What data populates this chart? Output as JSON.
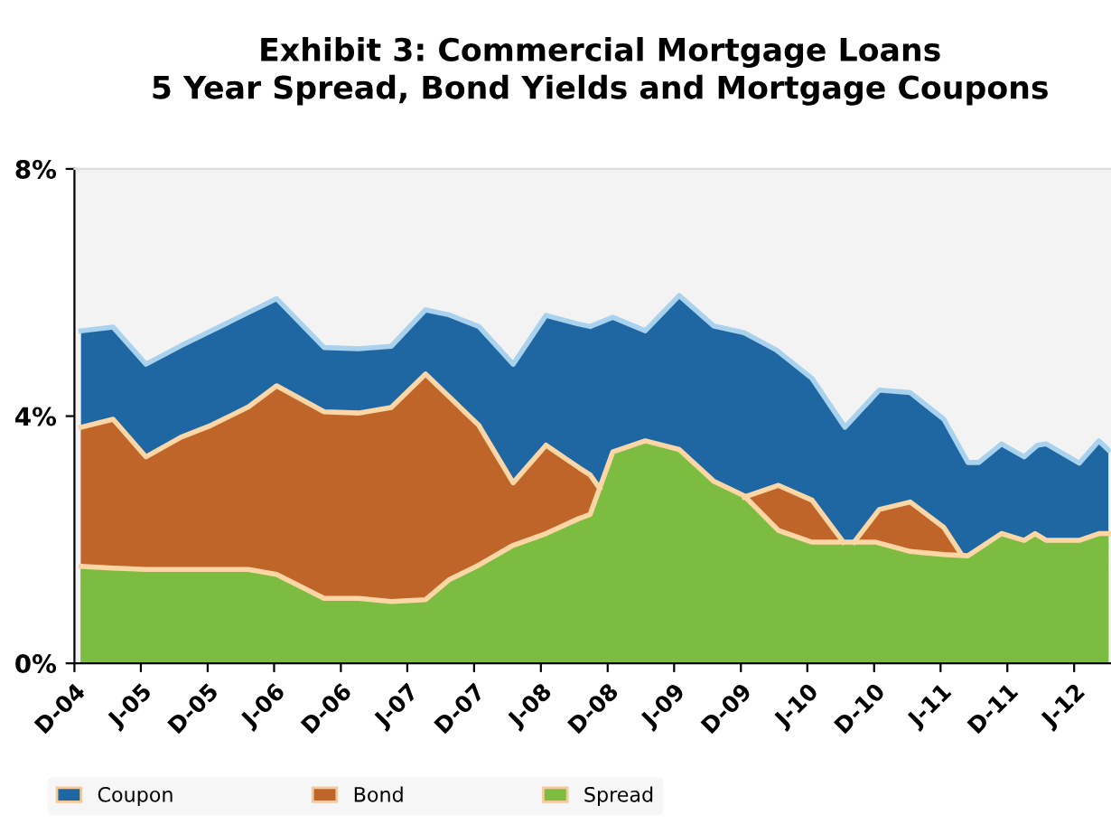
{
  "chart_data": {
    "type": "area",
    "title": "Exhibit 3: Commercial Mortgage Loans\n5 Year Spread, Bond Yields and Mortgage Coupons",
    "xlim": [
      "2004-12-01",
      "2012-09-10"
    ],
    "xticks": [
      {
        "value": "2004-12",
        "label": "D-04"
      },
      {
        "value": "2005-06",
        "label": "J-05"
      },
      {
        "value": "2005-12",
        "label": "D-05"
      },
      {
        "value": "2006-06",
        "label": "J-06"
      },
      {
        "value": "2006-12",
        "label": "D-06"
      },
      {
        "value": "2007-06",
        "label": "J-07"
      },
      {
        "value": "2007-12",
        "label": "D-07"
      },
      {
        "value": "2008-06",
        "label": "J-08"
      },
      {
        "value": "2008-12",
        "label": "D-08"
      },
      {
        "value": "2009-06",
        "label": "J-09"
      },
      {
        "value": "2009-12",
        "label": "D-09"
      },
      {
        "value": "2010-06",
        "label": "J-10"
      },
      {
        "value": "2010-12",
        "label": "D-10"
      },
      {
        "value": "2011-06",
        "label": "J-11"
      },
      {
        "value": "2011-12",
        "label": "D-11"
      },
      {
        "value": "2012-06",
        "label": "J-12"
      }
    ],
    "ylim": [
      0,
      8
    ],
    "yticks": [
      {
        "value": 0,
        "label": "0%"
      },
      {
        "value": 4,
        "label": "4%"
      },
      {
        "value": 8,
        "label": "8%"
      }
    ],
    "grid": false,
    "legend": "bottom",
    "series": [
      {
        "name": "Coupon",
        "color": "#1f67a3",
        "x": [
          "2004-12-19",
          "2005-03-17",
          "2005-06-15",
          "2005-09-19",
          "2006-06-08",
          "2006-10-16",
          "2007-01-18",
          "2007-04-18",
          "2007-07-21",
          "2007-09-23",
          "2007-12-14",
          "2008-03-17",
          "2008-06-15",
          "2008-09-12",
          "2008-10-14",
          "2008-12-15",
          "2009-03-14",
          "2009-06-15",
          "2009-09-17",
          "2009-12-10",
          "2010-03-08",
          "2010-06-14",
          "2010-09-12",
          "2010-12-15",
          "2011-03-10",
          "2011-06-10",
          "2011-08-15",
          "2011-09-14",
          "2011-11-15",
          "2012-01-16",
          "2012-02-22",
          "2012-03-17",
          "2012-06-15",
          "2012-08-08",
          "2012-09-03"
        ],
        "values": [
          5.38,
          5.44,
          4.84,
          5.14,
          5.9,
          5.11,
          5.09,
          5.13,
          5.72,
          5.64,
          5.45,
          4.84,
          5.63,
          5.49,
          5.45,
          5.6,
          5.38,
          5.95,
          5.46,
          5.35,
          5.07,
          4.61,
          3.82,
          4.42,
          4.38,
          3.95,
          3.25,
          3.25,
          3.55,
          3.34,
          3.53,
          3.55,
          3.24,
          3.6,
          3.45
        ]
      },
      {
        "name": "Bond",
        "color": "#c0652a",
        "x": [
          "2004-12-19",
          "2005-03-17",
          "2005-06-15",
          "2005-09-19",
          "2005-12-10",
          "2006-03-23",
          "2006-06-08",
          "2006-10-16",
          "2007-01-18",
          "2007-04-18",
          "2007-07-21",
          "2007-12-14",
          "2008-03-17",
          "2008-06-15",
          "2008-09-12",
          "2008-10-14",
          "2008-11-09",
          "2009-06-01",
          "2009-12-10",
          "2010-03-14",
          "2010-06-14",
          "2010-09-08",
          "2010-09-19",
          "2010-10-07",
          "2010-12-15",
          "2011-03-10",
          "2011-06-10",
          "2011-07-25"
        ],
        "values": [
          3.82,
          3.95,
          3.34,
          3.66,
          3.85,
          4.15,
          4.49,
          4.07,
          4.05,
          4.14,
          4.68,
          3.85,
          2.92,
          3.53,
          3.17,
          3.05,
          2.83,
          null,
          2.69,
          2.88,
          2.64,
          1.96,
          null,
          1.96,
          2.49,
          2.61,
          2.2,
          1.79
        ]
      },
      {
        "name": "Spread",
        "color": "#7cbd41",
        "x": [
          "2004-12-19",
          "2005-03-17",
          "2005-06-15",
          "2006-03-23",
          "2006-06-08",
          "2006-10-16",
          "2007-01-18",
          "2007-04-18",
          "2007-07-21",
          "2007-09-23",
          "2007-12-14",
          "2008-03-17",
          "2008-06-15",
          "2008-09-12",
          "2008-10-14",
          "2008-12-15",
          "2009-03-14",
          "2009-06-15",
          "2009-09-17",
          "2009-12-10",
          "2010-03-14",
          "2010-06-14",
          "2010-12-06",
          "2011-03-10",
          "2011-06-10",
          "2011-08-15",
          "2011-11-15",
          "2012-01-16",
          "2012-02-15",
          "2012-03-17",
          "2012-06-15",
          "2012-08-08",
          "2012-09-03"
        ],
        "values": [
          1.57,
          1.54,
          1.52,
          1.52,
          1.44,
          1.05,
          1.05,
          1.0,
          1.03,
          1.35,
          1.59,
          1.91,
          2.1,
          2.34,
          2.41,
          3.42,
          3.6,
          3.46,
          2.95,
          2.71,
          2.15,
          1.96,
          1.96,
          1.81,
          1.76,
          1.74,
          2.1,
          1.99,
          2.1,
          1.99,
          1.99,
          2.1,
          2.1
        ]
      }
    ]
  }
}
